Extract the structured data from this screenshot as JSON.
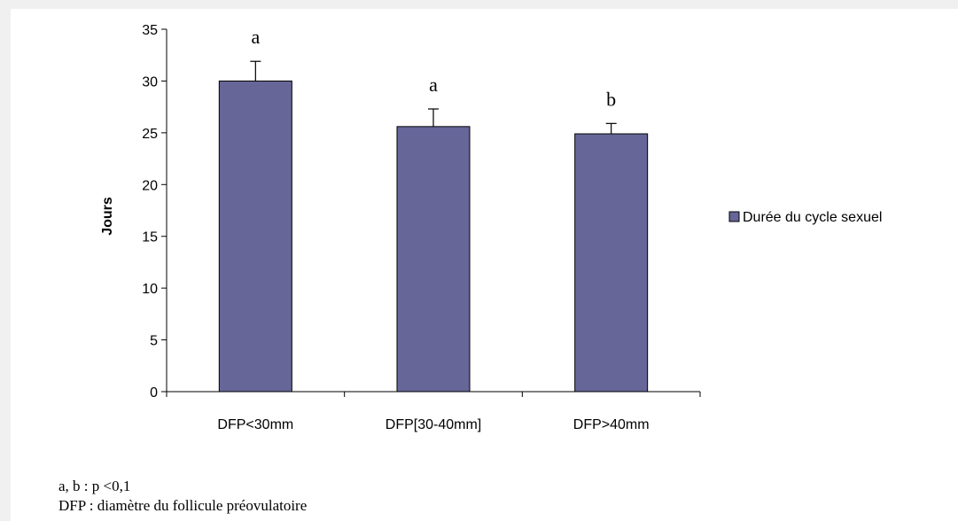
{
  "chart_data": {
    "type": "bar",
    "categories": [
      "DFP<30mm",
      "DFP[30-40mm]",
      "DFP>40mm"
    ],
    "series": [
      {
        "name": "Durée du cycle sexuel",
        "values": [
          30.0,
          25.6,
          24.9
        ],
        "errors": [
          1.9,
          1.7,
          1.0
        ],
        "significance": [
          "a",
          "a",
          "b"
        ]
      }
    ],
    "title": "",
    "xlabel": "",
    "ylabel": "Jours",
    "ylim": [
      0,
      35
    ],
    "yticks": [
      0,
      5,
      10,
      15,
      20,
      25,
      30,
      35
    ],
    "grid": false,
    "legend": "right",
    "colors": {
      "bar": "#666699",
      "error": "#000000"
    }
  },
  "notes": {
    "line1": "a, b : p <0,1",
    "line2": "DFP : diamètre du follicule préovulatoire"
  }
}
